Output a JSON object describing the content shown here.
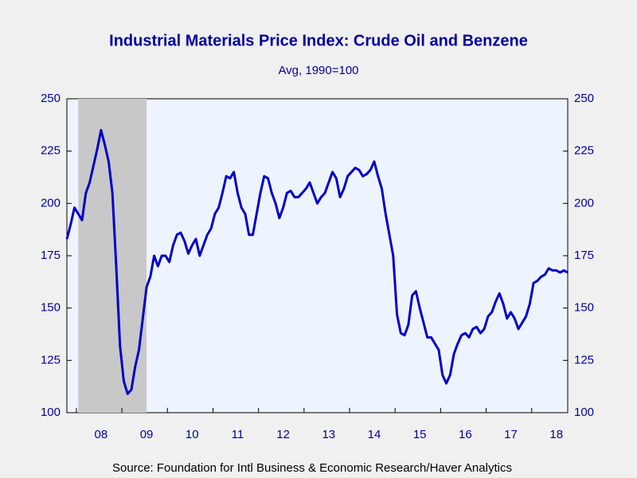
{
  "chart_data": {
    "type": "line",
    "title": "Industrial Materials Price Index: Crude Oil and Benzene",
    "subtitle": "Avg, 1990=100",
    "source": "Source:  Foundation for Intl Business & Economic Research/Haver Analytics",
    "categories": [
      null,
      null,
      null,
      null,
      null,
      null,
      null,
      null,
      null,
      "08",
      null,
      null,
      null,
      null,
      null,
      null,
      null,
      null,
      null,
      null,
      null,
      "09",
      null,
      null,
      null,
      null,
      null,
      null,
      null,
      null,
      null,
      null,
      null,
      "10",
      null,
      null,
      null,
      null,
      null,
      null,
      null,
      null,
      null,
      null,
      null,
      "11",
      null,
      null,
      null,
      null,
      null,
      null,
      null,
      null,
      null,
      null,
      null,
      "12",
      null,
      null,
      null,
      null,
      null,
      null,
      null,
      null,
      null,
      null,
      null,
      "13",
      null,
      null,
      null,
      null,
      null,
      null,
      null,
      null,
      null,
      null,
      null,
      "14",
      null,
      null,
      null,
      null,
      null,
      null,
      null,
      null,
      null,
      null,
      null,
      "15",
      null,
      null,
      null,
      null,
      null,
      null,
      null,
      null,
      null,
      null,
      null,
      "16",
      null,
      null,
      null,
      null,
      null,
      null,
      null,
      null,
      null,
      null,
      null,
      "17",
      null,
      null,
      null,
      null,
      null,
      null,
      null,
      null,
      null,
      null,
      null,
      "18",
      null,
      null,
      null
    ],
    "series": [
      {
        "color": "#0000c8",
        "values": [
          183,
          190,
          198,
          195,
          192,
          205,
          210,
          218,
          226,
          235,
          228,
          220,
          205,
          170,
          132,
          115,
          109,
          111,
          122,
          130,
          145,
          160,
          165,
          175,
          170,
          175,
          175,
          172,
          180,
          185,
          186,
          182,
          176,
          180,
          183,
          175,
          180,
          185,
          188,
          195,
          198,
          205,
          213,
          212,
          215,
          205,
          198,
          195,
          185,
          185,
          195,
          205,
          213,
          212,
          205,
          200,
          193,
          198,
          205,
          206,
          203,
          203,
          205,
          207,
          210,
          205,
          200,
          203,
          205,
          210,
          215,
          212,
          203,
          207,
          213,
          215,
          217,
          216,
          213,
          214,
          216,
          220,
          213,
          207,
          195,
          185,
          175,
          147,
          138,
          137,
          142,
          156,
          158,
          150,
          143,
          136,
          136,
          133,
          130,
          118,
          114,
          118,
          128,
          133,
          137,
          138,
          136,
          140,
          141,
          138,
          140,
          146,
          148,
          153,
          157,
          152,
          145,
          148,
          145,
          140,
          143,
          146,
          152,
          162,
          163,
          165,
          166,
          169,
          168,
          168,
          167,
          168,
          167
        ]
      }
    ],
    "ylim": [
      100,
      250
    ],
    "yticks": [
      100,
      125,
      150,
      175,
      200,
      225,
      250
    ],
    "y2lim": [
      100,
      250
    ],
    "y2ticks": [
      100,
      125,
      150,
      175,
      200,
      225,
      250
    ]
  }
}
